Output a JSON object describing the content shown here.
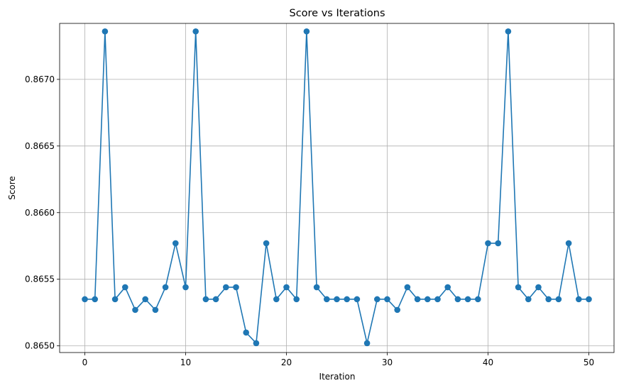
{
  "chart_data": {
    "type": "line",
    "title": "Score vs Iterations",
    "xlabel": "Iteration",
    "ylabel": "Score",
    "xlim": [
      -2.5,
      52.5
    ],
    "ylim": [
      0.86495,
      0.86742
    ],
    "grid": true,
    "marker": "circle",
    "colors": {
      "line": "#1f77b4",
      "grid": "#b0b0b0",
      "axes": "#000000"
    },
    "x_ticks": [
      0,
      10,
      20,
      30,
      40,
      50
    ],
    "x_tick_labels": [
      "0",
      "10",
      "20",
      "30",
      "40",
      "50"
    ],
    "y_ticks": [
      0.865,
      0.8655,
      0.866,
      0.8665,
      0.867
    ],
    "y_tick_labels": [
      "0.8650",
      "0.8655",
      "0.8660",
      "0.8665",
      "0.8670"
    ],
    "series": [
      {
        "x": [
          0,
          1,
          2,
          3,
          4,
          5,
          6,
          7,
          8,
          9,
          10,
          11,
          12,
          13,
          14,
          15,
          16,
          17,
          18,
          19,
          20,
          21,
          22,
          23,
          24,
          25,
          26,
          27,
          28,
          29,
          30,
          31,
          32,
          33,
          34,
          35,
          36,
          37,
          38,
          39,
          40,
          41,
          42,
          43,
          44,
          45,
          46,
          47,
          48,
          49,
          50
        ],
        "values": [
          0.86535,
          0.86535,
          0.86736,
          0.86535,
          0.86544,
          0.86527,
          0.86535,
          0.86527,
          0.86544,
          0.86577,
          0.86544,
          0.86736,
          0.86535,
          0.86535,
          0.86544,
          0.86544,
          0.8651,
          0.86502,
          0.86577,
          0.86535,
          0.86544,
          0.86535,
          0.86736,
          0.86544,
          0.86535,
          0.86535,
          0.86535,
          0.86535,
          0.86502,
          0.86535,
          0.86535,
          0.86527,
          0.86544,
          0.86535,
          0.86535,
          0.86535,
          0.86544,
          0.86535,
          0.86535,
          0.86535,
          0.86577,
          0.86577,
          0.86736,
          0.86544,
          0.86535,
          0.86544,
          0.86535,
          0.86535,
          0.86577,
          0.86535,
          0.86535
        ]
      }
    ]
  }
}
